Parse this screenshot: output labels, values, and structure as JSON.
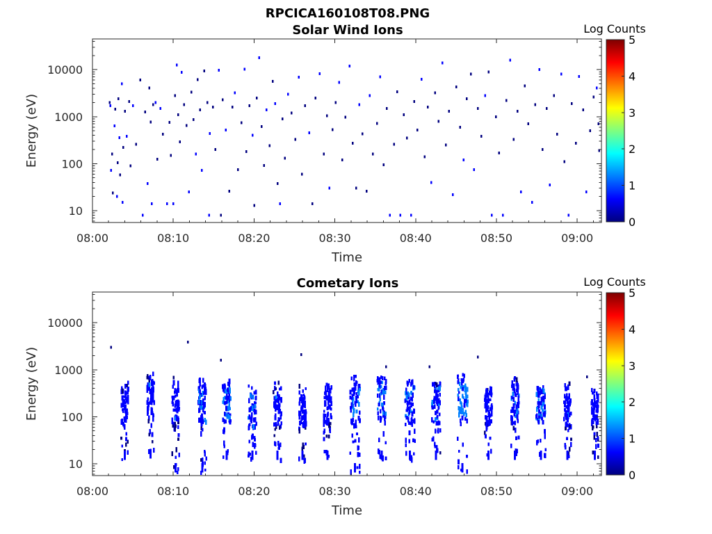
{
  "figure_title": "RPCICA160108T08.PNG",
  "colormap": [
    "#00007f",
    "#0000ff",
    "#007fff",
    "#00ffff",
    "#7fff7f",
    "#ffff00",
    "#ff7f00",
    "#ff0000",
    "#7f0000"
  ],
  "chart_data": [
    {
      "type": "heatmap",
      "title": "Solar Wind Ions",
      "xlabel": "Time",
      "ylabel": "Energy (eV)",
      "x_ticks": [
        "08:00",
        "08:10",
        "08:20",
        "08:30",
        "08:40",
        "08:50",
        "09:00"
      ],
      "x_tick_minutes": [
        0,
        10,
        20,
        30,
        40,
        50,
        60
      ],
      "xlim_minutes": [
        0,
        63
      ],
      "y_scale": "log",
      "y_ticks": [
        "10",
        "100",
        "1000",
        "10000"
      ],
      "y_tick_values": [
        10,
        100,
        1000,
        10000
      ],
      "ylim": [
        5.6,
        45000
      ],
      "colorbar": {
        "label": "Log Counts",
        "ticks": [
          "0",
          "1",
          "2",
          "3",
          "4",
          "5"
        ],
        "range": [
          0,
          5
        ]
      },
      "points": [
        [
          2.1,
          2000,
          0.2
        ],
        [
          2.2,
          1700,
          0.3
        ],
        [
          2.4,
          160,
          0.2
        ],
        [
          2.3,
          72,
          0.3
        ],
        [
          2.5,
          24,
          0.2
        ],
        [
          2.7,
          640,
          0.3
        ],
        [
          2.8,
          1450,
          0.2
        ],
        [
          3.0,
          20,
          0.3
        ],
        [
          3.1,
          105,
          0.2
        ],
        [
          3.3,
          360,
          0.3
        ],
        [
          3.2,
          2400,
          0.2
        ],
        [
          3.4,
          58,
          0.2
        ],
        [
          3.6,
          5000,
          0.3
        ],
        [
          3.8,
          220,
          0.2
        ],
        [
          3.7,
          15,
          0.3
        ],
        [
          4.0,
          1300,
          0.2
        ],
        [
          4.2,
          380,
          0.3
        ],
        [
          4.5,
          2100,
          0.2
        ],
        [
          4.7,
          90,
          0.2
        ],
        [
          5.0,
          1700,
          0.3
        ],
        [
          5.4,
          260,
          0.2
        ],
        [
          5.9,
          6000,
          0.2
        ],
        [
          6.2,
          8,
          0.3
        ],
        [
          6.5,
          1250,
          0.2
        ],
        [
          6.8,
          38,
          0.3
        ],
        [
          7.0,
          4100,
          0.2
        ],
        [
          7.2,
          770,
          0.2
        ],
        [
          7.3,
          14,
          0.3
        ],
        [
          7.5,
          1800,
          0.2
        ],
        [
          7.8,
          2000,
          0.3
        ],
        [
          8.0,
          125,
          0.2
        ],
        [
          8.4,
          1500,
          0.3
        ],
        [
          8.7,
          420,
          0.2
        ],
        [
          9.2,
          14,
          0.3
        ],
        [
          9.5,
          760,
          0.2
        ],
        [
          9.7,
          150,
          0.2
        ],
        [
          10.0,
          14,
          0.3
        ],
        [
          10.2,
          2800,
          0.2
        ],
        [
          10.4,
          12500,
          0.3
        ],
        [
          10.6,
          1100,
          0.2
        ],
        [
          10.8,
          290,
          0.2
        ],
        [
          11.0,
          8700,
          0.3
        ],
        [
          11.3,
          1800,
          0.2
        ],
        [
          11.6,
          650,
          0.2
        ],
        [
          11.9,
          25,
          0.3
        ],
        [
          12.2,
          3300,
          0.2
        ],
        [
          12.5,
          860,
          0.2
        ],
        [
          12.8,
          160,
          0.3
        ],
        [
          13.0,
          6100,
          0.2
        ],
        [
          13.3,
          1400,
          0.2
        ],
        [
          13.5,
          72,
          0.3
        ],
        [
          13.8,
          9400,
          0.2
        ],
        [
          14.2,
          2000,
          0.2
        ],
        [
          14.5,
          440,
          0.3
        ],
        [
          14.4,
          8,
          0.3
        ],
        [
          14.9,
          1600,
          0.2
        ],
        [
          15.2,
          200,
          0.2
        ],
        [
          15.6,
          9700,
          0.3
        ],
        [
          15.9,
          8,
          0.2
        ],
        [
          16.1,
          2300,
          0.2
        ],
        [
          16.5,
          520,
          0.3
        ],
        [
          16.9,
          26,
          0.2
        ],
        [
          17.3,
          1600,
          0.2
        ],
        [
          17.6,
          3200,
          0.3
        ],
        [
          18.0,
          75,
          0.2
        ],
        [
          18.4,
          740,
          0.2
        ],
        [
          18.8,
          10300,
          0.3
        ],
        [
          19.0,
          180,
          0.2
        ],
        [
          19.4,
          1700,
          0.2
        ],
        [
          19.8,
          400,
          0.3
        ],
        [
          20.0,
          13,
          0.2
        ],
        [
          20.3,
          2500,
          0.2
        ],
        [
          20.6,
          18000,
          0.3
        ],
        [
          20.9,
          620,
          0.2
        ],
        [
          21.2,
          92,
          0.2
        ],
        [
          21.5,
          1400,
          0.3
        ],
        [
          21.9,
          240,
          0.2
        ],
        [
          22.3,
          5600,
          0.2
        ],
        [
          22.6,
          1900,
          0.3
        ],
        [
          22.9,
          38,
          0.2
        ],
        [
          23.2,
          14,
          0.3
        ],
        [
          23.5,
          890,
          0.2
        ],
        [
          23.8,
          130,
          0.2
        ],
        [
          24.2,
          3000,
          0.3
        ],
        [
          24.6,
          1200,
          0.2
        ],
        [
          25.1,
          330,
          0.2
        ],
        [
          25.5,
          6900,
          0.3
        ],
        [
          25.9,
          60,
          0.2
        ],
        [
          26.3,
          1700,
          0.2
        ],
        [
          26.8,
          450,
          0.3
        ],
        [
          27.2,
          14,
          0.2
        ],
        [
          27.6,
          2500,
          0.2
        ],
        [
          28.1,
          8200,
          0.3
        ],
        [
          28.6,
          160,
          0.2
        ],
        [
          29.0,
          1050,
          0.2
        ],
        [
          29.3,
          30,
          0.3
        ],
        [
          29.7,
          530,
          0.2
        ],
        [
          30.1,
          2000,
          0.2
        ],
        [
          30.5,
          5400,
          0.3
        ],
        [
          30.9,
          120,
          0.2
        ],
        [
          31.3,
          980,
          0.2
        ],
        [
          31.8,
          12000,
          0.3
        ],
        [
          32.2,
          270,
          0.2
        ],
        [
          32.6,
          30,
          0.2
        ],
        [
          33.0,
          1800,
          0.3
        ],
        [
          33.4,
          430,
          0.2
        ],
        [
          33.9,
          26,
          0.2
        ],
        [
          34.3,
          2800,
          0.3
        ],
        [
          34.7,
          160,
          0.2
        ],
        [
          35.2,
          720,
          0.2
        ],
        [
          35.6,
          7000,
          0.3
        ],
        [
          36.0,
          95,
          0.2
        ],
        [
          36.4,
          1500,
          0.2
        ],
        [
          36.8,
          8,
          0.3
        ],
        [
          37.3,
          260,
          0.2
        ],
        [
          37.7,
          3400,
          0.2
        ],
        [
          38.1,
          8,
          0.3
        ],
        [
          38.5,
          1100,
          0.2
        ],
        [
          38.9,
          350,
          0.2
        ],
        [
          39.4,
          8,
          0.3
        ],
        [
          39.8,
          2100,
          0.2
        ],
        [
          40.2,
          520,
          0.2
        ],
        [
          40.7,
          6200,
          0.3
        ],
        [
          41.1,
          140,
          0.2
        ],
        [
          41.5,
          1600,
          0.2
        ],
        [
          41.9,
          40,
          0.3
        ],
        [
          42.4,
          3200,
          0.2
        ],
        [
          42.8,
          800,
          0.2
        ],
        [
          43.3,
          14000,
          0.3
        ],
        [
          43.7,
          250,
          0.2
        ],
        [
          44.1,
          1300,
          0.2
        ],
        [
          44.6,
          22,
          0.3
        ],
        [
          45.0,
          4300,
          0.2
        ],
        [
          45.5,
          600,
          0.2
        ],
        [
          45.9,
          120,
          0.3
        ],
        [
          46.3,
          2400,
          0.2
        ],
        [
          46.8,
          8000,
          0.2
        ],
        [
          47.2,
          75,
          0.3
        ],
        [
          47.7,
          1500,
          0.2
        ],
        [
          48.1,
          380,
          0.2
        ],
        [
          48.6,
          2800,
          0.3
        ],
        [
          49.0,
          9000,
          0.2
        ],
        [
          49.4,
          8,
          0.3
        ],
        [
          49.9,
          1000,
          0.2
        ],
        [
          50.3,
          170,
          0.2
        ],
        [
          50.8,
          8,
          0.3
        ],
        [
          51.2,
          2200,
          0.2
        ],
        [
          51.7,
          16000,
          0.3
        ],
        [
          52.1,
          330,
          0.2
        ],
        [
          52.6,
          1300,
          0.2
        ],
        [
          53.0,
          25,
          0.3
        ],
        [
          53.5,
          4500,
          0.2
        ],
        [
          53.9,
          700,
          0.2
        ],
        [
          54.4,
          15,
          0.3
        ],
        [
          54.8,
          1800,
          0.2
        ],
        [
          55.3,
          10000,
          0.3
        ],
        [
          55.7,
          200,
          0.2
        ],
        [
          56.2,
          1500,
          0.2
        ],
        [
          56.6,
          35,
          0.3
        ],
        [
          57.1,
          2800,
          0.2
        ],
        [
          57.5,
          420,
          0.2
        ],
        [
          58.0,
          8000,
          0.3
        ],
        [
          58.4,
          110,
          0.2
        ],
        [
          58.9,
          8,
          0.3
        ],
        [
          59.3,
          1900,
          0.2
        ],
        [
          59.8,
          270,
          0.2
        ],
        [
          60.2,
          7200,
          0.3
        ],
        [
          60.7,
          1400,
          0.2
        ],
        [
          61.1,
          25,
          0.3
        ],
        [
          61.6,
          500,
          0.2
        ],
        [
          62.0,
          2600,
          0.2
        ],
        [
          62.4,
          4100,
          0.3
        ],
        [
          62.7,
          190,
          0.2
        ],
        [
          62.6,
          700,
          0.2
        ]
      ]
    },
    {
      "type": "heatmap",
      "title": "Cometary Ions",
      "xlabel": "Time",
      "ylabel": "Energy (eV)",
      "x_ticks": [
        "08:00",
        "08:10",
        "08:20",
        "08:30",
        "08:40",
        "08:50",
        "09:00"
      ],
      "x_tick_minutes": [
        0,
        10,
        20,
        30,
        40,
        50,
        60
      ],
      "xlim_minutes": [
        0,
        63
      ],
      "y_scale": "log",
      "y_ticks": [
        "10",
        "100",
        "1000",
        "10000"
      ],
      "y_tick_values": [
        10,
        100,
        1000,
        10000
      ],
      "ylim": [
        5.6,
        45000
      ],
      "colorbar": {
        "label": "Log Counts",
        "ticks": [
          "0",
          "1",
          "2",
          "3",
          "4",
          "5"
        ],
        "range": [
          0,
          5
        ]
      },
      "bursts": [
        {
          "t": 4.0,
          "lo": 12,
          "hi": 550,
          "core": 160,
          "w": 0.9,
          "lvl": 0.45
        },
        {
          "t": 7.2,
          "lo": 13,
          "hi": 900,
          "core": 240,
          "w": 0.9,
          "lvl": 0.5
        },
        {
          "t": 10.3,
          "lo": 6.5,
          "hi": 750,
          "core": 180,
          "w": 0.9,
          "lvl": 0.5
        },
        {
          "t": 13.6,
          "lo": 6.5,
          "hi": 650,
          "core": 170,
          "w": 1.0,
          "lvl": 0.55
        },
        {
          "t": 16.6,
          "lo": 12,
          "hi": 650,
          "core": 190,
          "w": 1.0,
          "lvl": 0.6
        },
        {
          "t": 19.8,
          "lo": 12,
          "hi": 500,
          "core": 140,
          "w": 1.0,
          "lvl": 0.55
        },
        {
          "t": 22.9,
          "lo": 12,
          "hi": 550,
          "core": 150,
          "w": 1.0,
          "lvl": 0.5
        },
        {
          "t": 26.0,
          "lo": 12,
          "hi": 500,
          "core": 140,
          "w": 0.9,
          "lvl": 0.45
        },
        {
          "t": 29.1,
          "lo": 12,
          "hi": 550,
          "core": 170,
          "w": 1.0,
          "lvl": 0.5
        },
        {
          "t": 32.5,
          "lo": 6.5,
          "hi": 850,
          "core": 220,
          "w": 1.2,
          "lvl": 0.6
        },
        {
          "t": 35.8,
          "lo": 12,
          "hi": 900,
          "core": 240,
          "w": 1.1,
          "lvl": 0.6
        },
        {
          "t": 39.3,
          "lo": 12,
          "hi": 750,
          "core": 200,
          "w": 1.2,
          "lvl": 0.6
        },
        {
          "t": 42.5,
          "lo": 12,
          "hi": 650,
          "core": 190,
          "w": 1.1,
          "lvl": 0.55
        },
        {
          "t": 45.8,
          "lo": 6.5,
          "hi": 900,
          "core": 230,
          "w": 1.3,
          "lvl": 0.7
        },
        {
          "t": 49.0,
          "lo": 12,
          "hi": 550,
          "core": 160,
          "w": 0.9,
          "lvl": 0.5
        },
        {
          "t": 52.3,
          "lo": 12,
          "hi": 750,
          "core": 200,
          "w": 1.0,
          "lvl": 0.55
        },
        {
          "t": 55.5,
          "lo": 12,
          "hi": 550,
          "core": 180,
          "w": 1.2,
          "lvl": 0.6
        },
        {
          "t": 58.8,
          "lo": 12,
          "hi": 550,
          "core": 160,
          "w": 0.9,
          "lvl": 0.5
        },
        {
          "t": 62.2,
          "lo": 12,
          "hi": 500,
          "core": 150,
          "w": 0.9,
          "lvl": 0.45
        }
      ],
      "points": [
        [
          2.3,
          3000,
          0.2
        ],
        [
          11.8,
          3900,
          0.2
        ],
        [
          15.9,
          1600,
          0.2
        ],
        [
          25.8,
          2100,
          0.2
        ],
        [
          36.3,
          1150,
          0.2
        ],
        [
          41.7,
          1150,
          0.2
        ],
        [
          47.7,
          1850,
          0.2
        ],
        [
          61.2,
          700,
          0.2
        ]
      ]
    }
  ]
}
